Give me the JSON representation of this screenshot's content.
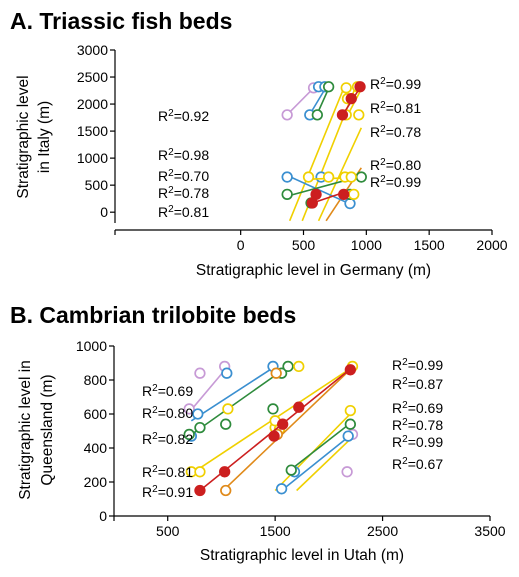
{
  "colors": {
    "axis": "#000000",
    "purple": "#c79ad6",
    "blue": "#3a8fd0",
    "green": "#2e8b3c",
    "yellow": "#f0d000",
    "orange": "#e08a1a",
    "red": "#cc1f1f"
  },
  "chart_data": [
    {
      "type": "scatter",
      "title": "A. Triassic fish beds",
      "xlabel": "Stratigraphic level in Germany (m)",
      "ylabel": "Stratigraphic level\nin Italy (m)",
      "xlim": [
        -1000,
        2000
      ],
      "ylim": [
        -200,
        3000
      ],
      "xticks": [
        0,
        500,
        1000,
        1500,
        2000
      ],
      "yticks": [
        0,
        500,
        1000,
        1500,
        2000,
        2500,
        3000
      ],
      "grid": false,
      "r2_left": [
        "R2=0.92",
        "R2=0.98",
        "R2=0.70",
        "R2=0.78",
        "R2=0.81"
      ],
      "r2_right": [
        "R2=0.99",
        "R2=0.81",
        "R2=0.78",
        "R2=0.80",
        "R2=0.99"
      ],
      "series": [
        {
          "color": "purple",
          "points": [
            [
              370,
              1800
            ],
            [
              580,
              2300
            ]
          ],
          "fill": "open",
          "line": [
            [
              360,
              1780
            ],
            [
              590,
              2320
            ]
          ]
        },
        {
          "color": "blue",
          "points": [
            [
              550,
              1800
            ],
            [
              620,
              2320
            ],
            [
              670,
              2320
            ]
          ],
          "fill": "open",
          "line": [
            [
              540,
              1770
            ],
            [
              690,
              2350
            ]
          ]
        },
        {
          "color": "green",
          "points": [
            [
              610,
              1800
            ],
            [
              700,
              2320
            ]
          ],
          "fill": "open",
          "line": [
            [
              600,
              1770
            ],
            [
              710,
              2340
            ]
          ]
        },
        {
          "color": "yellow",
          "points": [
            [
              840,
              1800
            ],
            [
              850,
              2100
            ],
            [
              840,
              2300
            ],
            [
              930,
              2320
            ],
            [
              940,
              1800
            ]
          ],
          "fill": "open",
          "line": [
            [
              830,
              1700
            ],
            [
              970,
              2320
            ]
          ]
        },
        {
          "color": "red",
          "points": [
            [
              810,
              1800
            ],
            [
              880,
              2100
            ],
            [
              950,
              2320
            ]
          ],
          "fill": "solid",
          "line": [
            [
              790,
              1720
            ],
            [
              960,
              2340
            ]
          ]
        },
        {
          "color": "blue",
          "points": [
            [
              370,
              650
            ],
            [
              640,
              650
            ],
            [
              870,
              160
            ]
          ],
          "fill": "open",
          "line": [
            [
              360,
              690
            ],
            [
              900,
              120
            ]
          ]
        },
        {
          "color": "green",
          "points": [
            [
              370,
              330
            ],
            [
              560,
              170
            ],
            [
              870,
              330
            ],
            [
              960,
              650
            ]
          ],
          "fill": "open",
          "line": [
            [
              360,
              290
            ],
            [
              980,
              680
            ]
          ]
        },
        {
          "color": "yellow",
          "points": [
            [
              540,
              650
            ],
            [
              700,
              650
            ],
            [
              830,
              650
            ],
            [
              880,
              650
            ],
            [
              900,
              330
            ]
          ],
          "fill": "open",
          "line": [
            [
              540,
              610
            ],
            [
              920,
              640
            ]
          ]
        },
        {
          "color": "red",
          "points": [
            [
              570,
              170
            ],
            [
              600,
              330
            ],
            [
              820,
              330
            ]
          ],
          "fill": "solid",
          "line": [
            [
              560,
              160
            ],
            [
              840,
              380
            ]
          ]
        }
      ],
      "guide_lines": [
        {
          "color": "yellow",
          "line": [
            [
              390,
              -160
            ],
            [
              830,
              2350
            ]
          ]
        },
        {
          "color": "yellow",
          "line": [
            [
              490,
              -160
            ],
            [
              920,
              2350
            ]
          ]
        },
        {
          "color": "yellow",
          "line": [
            [
              620,
              -160
            ],
            [
              960,
              1560
            ]
          ]
        },
        {
          "color": "orange",
          "line": [
            [
              680,
              -160
            ],
            [
              960,
              820
            ]
          ]
        }
      ]
    },
    {
      "type": "scatter",
      "title": "B. Cambrian trilobite beds",
      "xlabel": "Stratigraphic level in Utah (m)",
      "ylabel": "Stratigraphic level in\nQueensland (m)",
      "xlim": [
        0,
        3500
      ],
      "ylim": [
        0,
        1000
      ],
      "xticks": [
        500,
        1500,
        2500,
        3500
      ],
      "yticks": [
        0,
        200,
        400,
        600,
        800,
        1000
      ],
      "grid": false,
      "r2_left": [
        "R2=0.69",
        "R2=0.80",
        "R2=0.82",
        "R2=0.81",
        "R2=0.91"
      ],
      "r2_right": [
        "R2=0.99",
        "R2=0.87",
        "R2=0.69",
        "R2=0.78",
        "R2=0.99",
        "R2=0.67"
      ],
      "series": [
        {
          "color": "purple",
          "points": [
            [
              700,
              630
            ],
            [
              800,
              840
            ],
            [
              1030,
              880
            ],
            [
              2170,
              260
            ],
            [
              2220,
              480
            ]
          ],
          "fill": "open",
          "line": [
            [
              700,
              610
            ],
            [
              1060,
              880
            ]
          ]
        },
        {
          "color": "blue",
          "points": [
            [
              720,
              470
            ],
            [
              780,
              600
            ],
            [
              1050,
              840
            ],
            [
              1480,
              880
            ],
            [
              1560,
              160
            ],
            [
              1680,
              260
            ],
            [
              2180,
              470
            ]
          ],
          "fill": "open",
          "line": [
            [
              720,
              560
            ],
            [
              1500,
              880
            ]
          ]
        },
        {
          "color": "green",
          "points": [
            [
              700,
              480
            ],
            [
              800,
              520
            ],
            [
              1040,
              540
            ],
            [
              1480,
              630
            ],
            [
              1560,
              840
            ],
            [
              1620,
              880
            ],
            [
              1650,
              270
            ],
            [
              2200,
              540
            ]
          ],
          "fill": "open",
          "line": [
            [
              700,
              470
            ],
            [
              1620,
              880
            ]
          ]
        },
        {
          "color": "yellow",
          "points": [
            [
              720,
              260
            ],
            [
              800,
              260
            ],
            [
              1060,
              630
            ],
            [
              1500,
              520
            ],
            [
              1500,
              560
            ],
            [
              1540,
              510
            ],
            [
              1720,
              880
            ],
            [
              2200,
              620
            ],
            [
              2220,
              880
            ]
          ],
          "fill": "open",
          "line": [
            [
              700,
              240
            ],
            [
              2230,
              880
            ]
          ]
        },
        {
          "color": "orange",
          "points": [
            [
              1040,
              150
            ],
            [
              1510,
              840
            ],
            [
              1520,
              480
            ]
          ],
          "fill": "open",
          "line": [
            [
              1000,
              140
            ],
            [
              2230,
              880
            ]
          ]
        },
        {
          "color": "red",
          "points": [
            [
              800,
              150
            ],
            [
              1030,
              260
            ],
            [
              1490,
              470
            ],
            [
              1570,
              540
            ],
            [
              1720,
              640
            ],
            [
              2200,
              860
            ]
          ],
          "fill": "solid",
          "line": [
            [
              780,
              140
            ],
            [
              2230,
              880
            ]
          ]
        }
      ],
      "guide_lines": [
        {
          "color": "yellow",
          "line": [
            [
              1500,
              150
            ],
            [
              2230,
              620
            ]
          ]
        },
        {
          "color": "blue",
          "line": [
            [
              1560,
              150
            ],
            [
              2230,
              490
            ]
          ]
        },
        {
          "color": "green",
          "line": [
            [
              1620,
              260
            ],
            [
              2230,
              560
            ]
          ]
        },
        {
          "color": "yellow",
          "line": [
            [
              1700,
              150
            ],
            [
              2230,
              470
            ]
          ]
        }
      ]
    }
  ]
}
